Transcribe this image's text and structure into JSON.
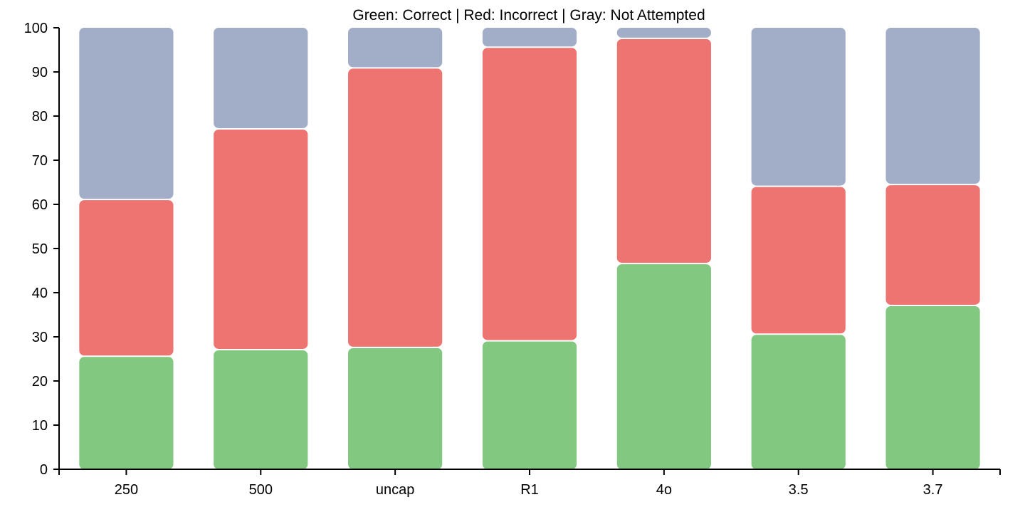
{
  "chart_data": {
    "type": "bar",
    "stacked": true,
    "title": "Green: Correct | Red: Incorrect | Gray: Not Attempted",
    "xlabel": "",
    "ylabel": "",
    "ylim": [
      0,
      100
    ],
    "yticks": [
      0,
      10,
      20,
      30,
      40,
      50,
      60,
      70,
      80,
      90,
      100
    ],
    "categories": [
      "250",
      "500",
      "uncap",
      "R1",
      "4o",
      "3.5",
      "3.7"
    ],
    "grid": false,
    "legend": "none",
    "series": [
      {
        "color": "#82c880",
        "values": [
          25.6,
          27.1,
          27.6,
          29.1,
          46.6,
          30.6,
          37.1
        ]
      },
      {
        "color": "#ed7471",
        "values": [
          35.5,
          50.0,
          63.3,
          66.5,
          51.0,
          33.5,
          27.4
        ]
      },
      {
        "color": "#a2adc7",
        "values": [
          38.9,
          22.9,
          9.1,
          4.4,
          2.4,
          35.9,
          35.5
        ]
      }
    ]
  }
}
